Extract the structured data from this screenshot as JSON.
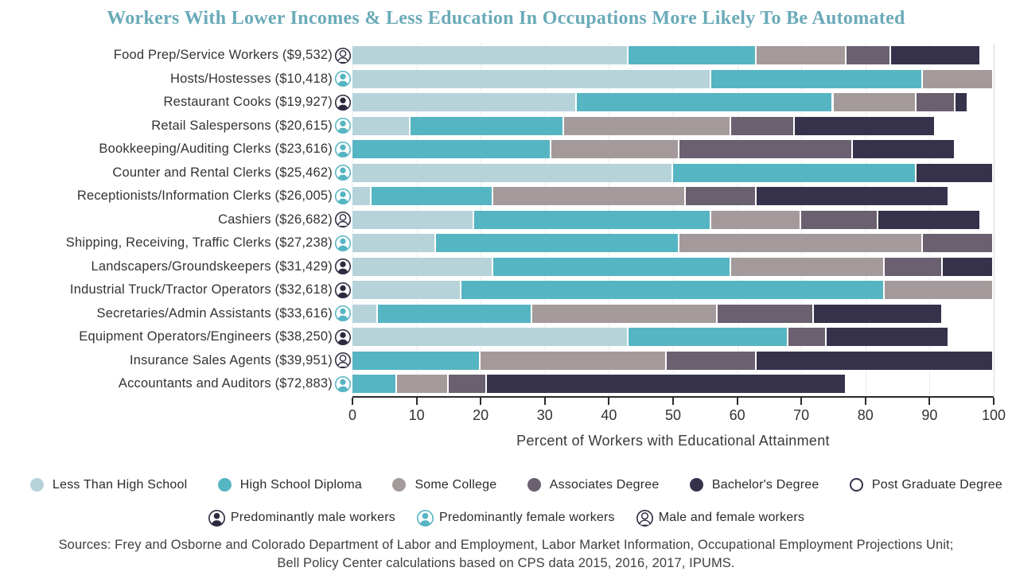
{
  "title": "Workers With Lower Incomes & Less Education In Occupations More Likely To Be Automated",
  "chart_data": {
    "type": "bar",
    "stacked": true,
    "orientation": "horizontal",
    "xlabel": "Percent of Workers with Educational Attainment",
    "xlim": [
      0,
      100
    ],
    "x_ticks": [
      0,
      10,
      20,
      30,
      40,
      50,
      60,
      70,
      80,
      90,
      100
    ],
    "grid": "light vertical gridlines at each tick",
    "legend_position": "bottom",
    "categories": [
      {
        "label": "Less Than High School",
        "color": "#b5d3d9"
      },
      {
        "label": "High School Diploma",
        "color": "#56b5c2"
      },
      {
        "label": "Some College",
        "color": "#a59a9b"
      },
      {
        "label": "Associates Degree",
        "color": "#6a6070"
      },
      {
        "label": "Bachelor's Degree",
        "color": "#36324c"
      },
      {
        "label": "Post Graduate Degree",
        "color": "#ffffff",
        "outline_color": "#36324c"
      }
    ],
    "gender_legend": [
      {
        "label": "Predominantly male workers",
        "gender": "male",
        "color": "#2d2a3e",
        "filled": true
      },
      {
        "label": "Predominantly female workers",
        "gender": "female",
        "color": "#56b5c2",
        "filled": true
      },
      {
        "label": "Male and female workers",
        "gender": "mixed",
        "color": "#2d2a3e",
        "filled": false
      }
    ],
    "rows": [
      {
        "label": "Food Prep/Service Workers ($9,532)",
        "gender": "mixed",
        "values": [
          43,
          20,
          14,
          7,
          14,
          2
        ]
      },
      {
        "label": "Hosts/Hostesses ($10,418)",
        "gender": "female",
        "values": [
          56,
          33,
          11,
          0,
          0,
          0
        ]
      },
      {
        "label": "Restaurant Cooks ($19,927)",
        "gender": "male",
        "values": [
          35,
          40,
          13,
          6,
          2,
          4
        ]
      },
      {
        "label": "Retail Salespersons ($20,615)",
        "gender": "female",
        "values": [
          9,
          24,
          26,
          10,
          22,
          9
        ]
      },
      {
        "label": "Bookkeeping/Auditing Clerks ($23,616)",
        "gender": "female",
        "values": [
          0,
          31,
          20,
          27,
          16,
          6
        ]
      },
      {
        "label": "Counter and Rental Clerks ($25,462)",
        "gender": "female",
        "values": [
          50,
          38,
          0,
          0,
          12,
          0
        ]
      },
      {
        "label": "Receptionists/Information Clerks ($26,005)",
        "gender": "female",
        "values": [
          3,
          19,
          30,
          11,
          30,
          7
        ]
      },
      {
        "label": "Cashiers ($26,682)",
        "gender": "mixed",
        "values": [
          19,
          37,
          14,
          12,
          16,
          2
        ]
      },
      {
        "label": "Shipping, Receiving, Traffic Clerks ($27,238)",
        "gender": "female",
        "values": [
          13,
          38,
          38,
          11,
          0,
          0
        ]
      },
      {
        "label": "Landscapers/Groundskeepers ($31,429)",
        "gender": "male",
        "values": [
          22,
          37,
          24,
          9,
          8,
          0
        ]
      },
      {
        "label": "Industrial Truck/Tractor Operators ($32,618)",
        "gender": "male",
        "values": [
          17,
          66,
          17,
          0,
          0,
          0
        ]
      },
      {
        "label": "Secretaries/Admin Assistants ($33,616)",
        "gender": "female",
        "values": [
          4,
          24,
          29,
          15,
          20,
          8
        ]
      },
      {
        "label": "Equipment Operators/Engineers ($38,250)",
        "gender": "male",
        "values": [
          43,
          25,
          0,
          6,
          19,
          7
        ]
      },
      {
        "label": "Insurance Sales Agents ($39,951)",
        "gender": "mixed",
        "values": [
          0,
          20,
          29,
          14,
          37,
          0
        ]
      },
      {
        "label": "Accountants and Auditors ($72,883)",
        "gender": "female",
        "values": [
          0,
          7,
          8,
          6,
          56,
          23
        ]
      }
    ]
  },
  "axis": {
    "tick_labels": [
      "0",
      "10",
      "20",
      "30",
      "40",
      "50",
      "60",
      "70",
      "80",
      "90",
      "100"
    ]
  },
  "sources": {
    "line1": "Sources: Frey and Osborne and Colorado Department of Labor and Employment, Labor Market Information, Occupational Employment Projections Unit;",
    "line2": "Bell Policy Center calculations based on CPS data 2015, 2016, 2017, IPUMS."
  }
}
